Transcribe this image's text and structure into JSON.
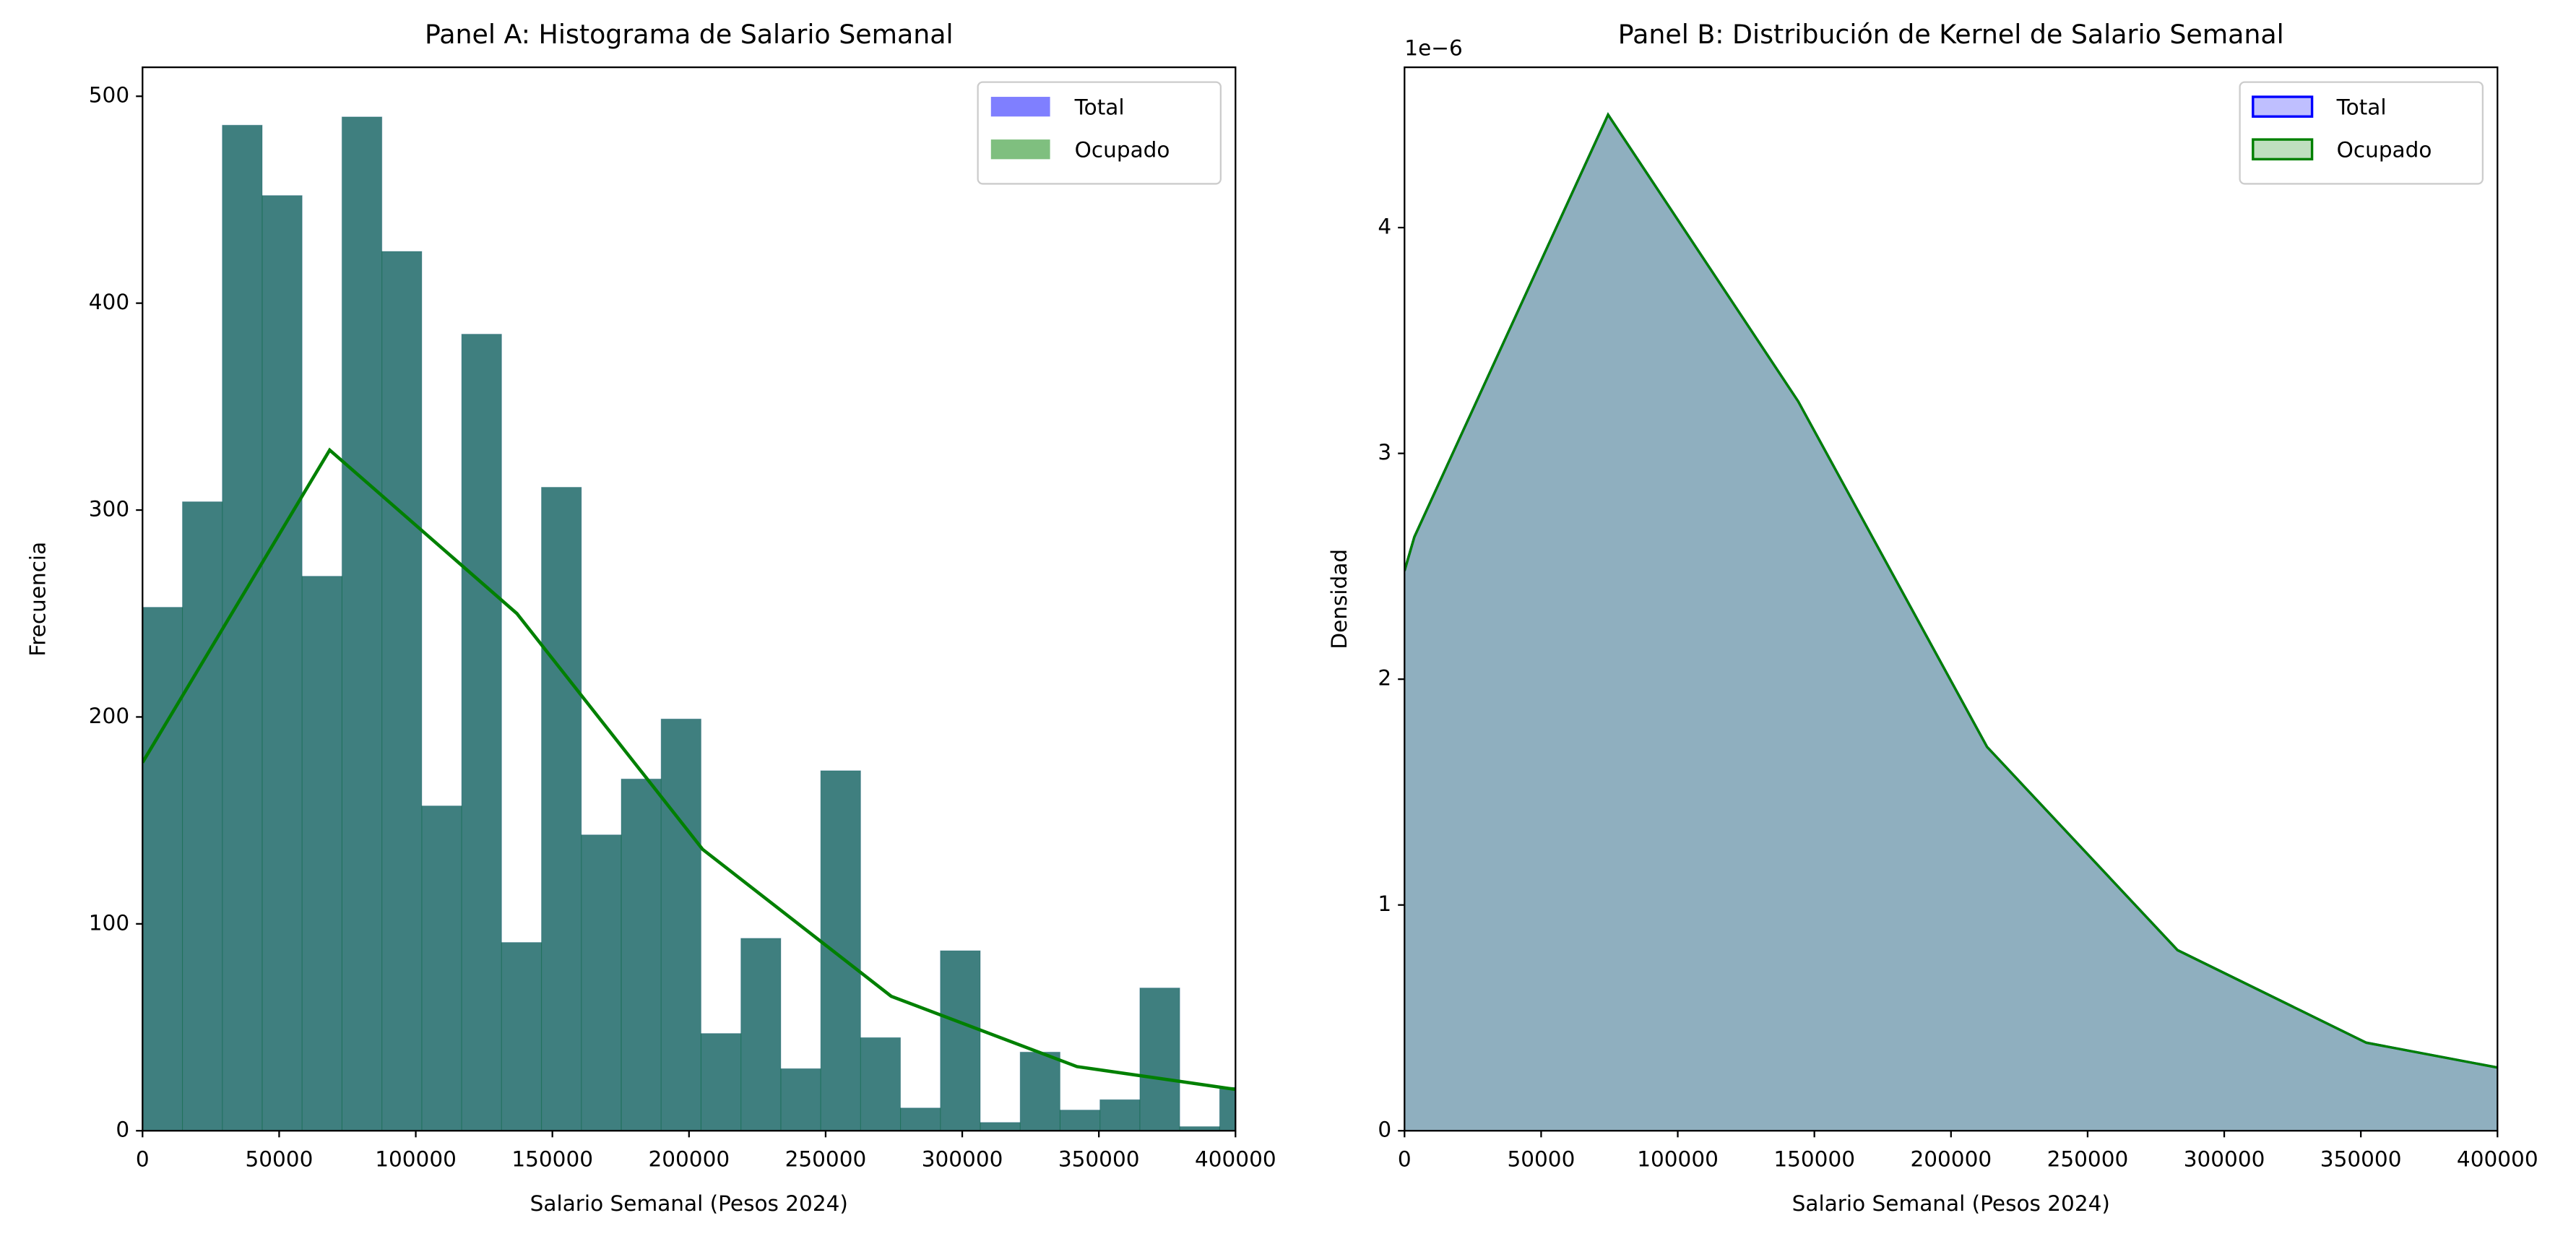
{
  "chart_data": [
    {
      "type": "histogram",
      "title": "Panel A: Histograma de Salario Semanal",
      "xlabel": "Salario Semanal (Pesos 2024)",
      "ylabel": "Frecuencia",
      "bins": [
        0,
        14600,
        29200,
        43800,
        58400,
        73000,
        87600,
        102200,
        116800,
        131400,
        146000,
        160600,
        175200,
        189800,
        204400,
        219000,
        233600,
        248200,
        262800,
        277400,
        292000,
        306600,
        321200,
        335800,
        350400,
        365000,
        379600,
        394200,
        408800
      ],
      "series": [
        {
          "name": "Total",
          "color": "#0000ff",
          "values": [
            253,
            304,
            486,
            452,
            268,
            490,
            425,
            157,
            385,
            91,
            311,
            143,
            170,
            199,
            47,
            93,
            30,
            174,
            45,
            11,
            87,
            4,
            38,
            10,
            15,
            69,
            2,
            21
          ]
        },
        {
          "name": "Ocupado",
          "color": "#008000",
          "values": [
            253,
            304,
            486,
            452,
            268,
            490,
            425,
            157,
            385,
            91,
            311,
            143,
            170,
            199,
            47,
            93,
            30,
            174,
            45,
            11,
            87,
            4,
            38,
            10,
            15,
            69,
            2,
            21
          ]
        }
      ],
      "line": {
        "color": "#008000",
        "x": [
          0,
          68500,
          137000,
          205000,
          274000,
          342000,
          400000
        ],
        "values": [
          178,
          329,
          250,
          136,
          65,
          31,
          20
        ]
      },
      "xlim": [
        0,
        400000
      ],
      "ylim": [
        0,
        514
      ],
      "xticks": [
        0,
        50000,
        100000,
        150000,
        200000,
        250000,
        300000,
        350000,
        400000
      ],
      "yticks": [
        0,
        100,
        200,
        300,
        400,
        500
      ],
      "legend": "upper right"
    },
    {
      "type": "area",
      "title": "Panel B: Distribución de Kernel de Salario Semanal",
      "xlabel": "Salario Semanal (Pesos 2024)",
      "ylabel": "Densidad",
      "y_offset_label": "1e−6",
      "x": [
        0,
        3600,
        74500,
        144100,
        213200,
        282900,
        352000,
        400000
      ],
      "series": [
        {
          "name": "Total",
          "color": "#0000ff",
          "values": [
            2.48,
            2.63,
            4.5,
            3.23,
            1.7,
            0.8,
            0.39,
            0.28
          ]
        },
        {
          "name": "Ocupado",
          "color": "#008000",
          "values": [
            2.48,
            2.63,
            4.5,
            3.23,
            1.7,
            0.8,
            0.39,
            0.28
          ]
        }
      ],
      "xlim": [
        0,
        400000
      ],
      "ylim": [
        0,
        4.71
      ],
      "xticks": [
        0,
        50000,
        100000,
        150000,
        200000,
        250000,
        300000,
        350000,
        400000
      ],
      "yticks": [
        0,
        1,
        2,
        3,
        4
      ],
      "legend": "upper right"
    }
  ]
}
